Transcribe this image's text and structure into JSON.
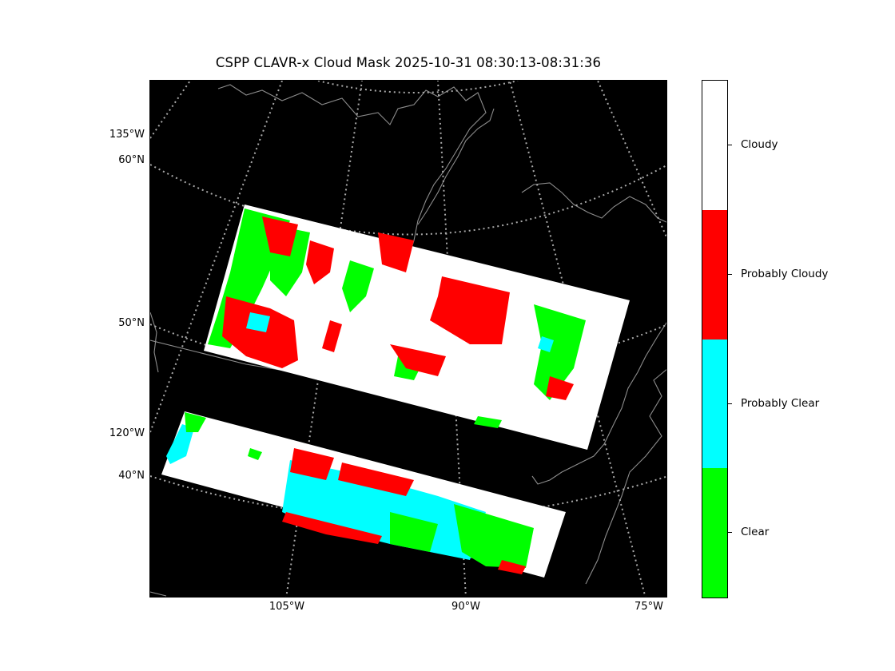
{
  "title": "CSPP CLAVR-x Cloud Mask 2025-10-31 08:30:13-08:31:36",
  "axes": {
    "left_labels": [
      "135°W",
      "60°N",
      "50°N",
      "120°W",
      "40°N"
    ],
    "bottom_labels": [
      "105°W",
      "90°W",
      "75°W"
    ]
  },
  "colorbar": {
    "categories": [
      {
        "label": "Cloudy",
        "color": "#ffffff"
      },
      {
        "label": "Probably Cloudy",
        "color": "#ff0000"
      },
      {
        "label": "Probably Clear",
        "color": "#00ffff"
      },
      {
        "label": "Clear",
        "color": "#00ff00"
      }
    ]
  },
  "colors": {
    "background": "#000000",
    "gridlines": "#aaaaaa",
    "coastlines": "#8c8c8c"
  }
}
